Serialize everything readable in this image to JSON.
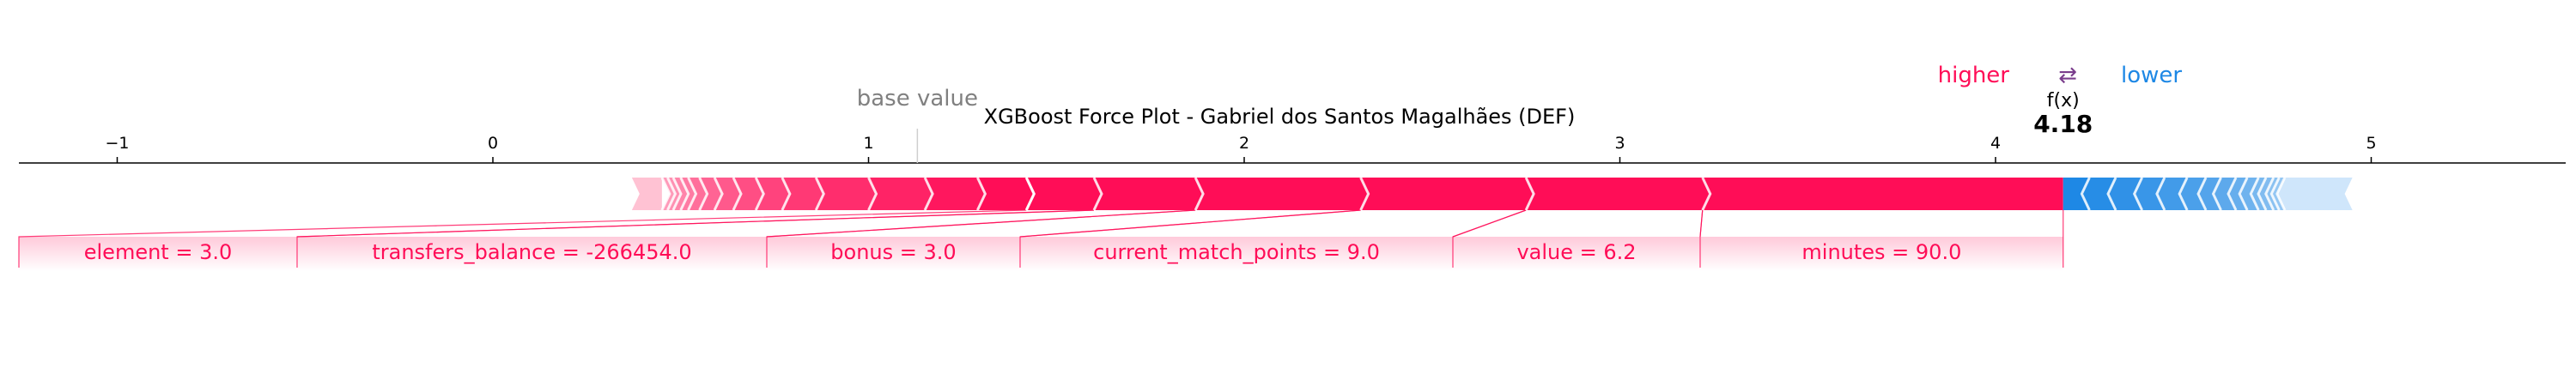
{
  "chart_data": {
    "type": "force",
    "title": "XGBoost Force Plot - Gabriel dos Santos Magalhães (DEF)",
    "base_value_label": "base value",
    "fx_label": "f(x)",
    "base_value": 1.13,
    "output_value": 4.18,
    "output_value_text": "4.18",
    "xlim": [
      -1.25,
      5.5
    ],
    "ticks": [
      -1,
      0,
      1,
      2,
      3,
      4,
      5
    ],
    "tick_labels": [
      "−1",
      "0",
      "1",
      "2",
      "3",
      "4",
      "5"
    ],
    "legend": {
      "higher": "higher",
      "arrows": "⇄",
      "lower": "lower",
      "higher_color": "#ff0d57",
      "lower_color": "#1e88e5"
    },
    "colors": {
      "positive": "#ff0d57",
      "negative": "#1e88e5"
    },
    "positive_features": [
      {
        "label": "minutes = 90.0",
        "start": 3.22,
        "end": 4.18
      },
      {
        "label": "value = 6.2",
        "start": 2.75,
        "end": 3.22
      },
      {
        "label": "current_match_points = 9.0",
        "start": 2.31,
        "end": 2.75
      },
      {
        "label": "bonus = 3.0",
        "start": 1.87,
        "end": 2.31
      },
      {
        "label": "transfers_balance = -266454.0",
        "start": 1.6,
        "end": 1.87
      },
      {
        "label": "element = 3.0",
        "start": 1.42,
        "end": 1.6
      }
    ],
    "positive_small_edges": [
      1.29,
      1.15,
      1.0,
      0.86,
      0.77,
      0.7,
      0.64,
      0.59,
      0.55,
      0.52,
      0.5,
      0.48,
      0.465,
      0.45
    ],
    "positive_tail_start": 0.37,
    "negative_edges": [
      4.18,
      4.25,
      4.32,
      4.39,
      4.45,
      4.51,
      4.56,
      4.6,
      4.64,
      4.67,
      4.7,
      4.72,
      4.74,
      4.755,
      4.77
    ],
    "negative_tail_end": 4.95
  }
}
